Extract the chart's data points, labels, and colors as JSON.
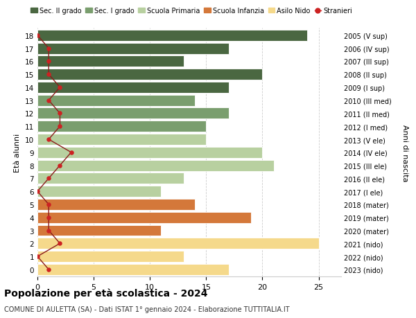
{
  "ages": [
    18,
    17,
    16,
    15,
    14,
    13,
    12,
    11,
    10,
    9,
    8,
    7,
    6,
    5,
    4,
    3,
    2,
    1,
    0
  ],
  "years": [
    "2005 (V sup)",
    "2006 (IV sup)",
    "2007 (III sup)",
    "2008 (II sup)",
    "2009 (I sup)",
    "2010 (III med)",
    "2011 (II med)",
    "2012 (I med)",
    "2013 (V ele)",
    "2014 (IV ele)",
    "2015 (III ele)",
    "2016 (II ele)",
    "2017 (I ele)",
    "2018 (mater)",
    "2019 (mater)",
    "2020 (mater)",
    "2021 (nido)",
    "2022 (nido)",
    "2023 (nido)"
  ],
  "values": [
    24,
    17,
    13,
    20,
    17,
    14,
    17,
    15,
    15,
    20,
    21,
    13,
    11,
    14,
    19,
    11,
    25,
    13,
    17
  ],
  "stranieri": [
    0,
    1,
    1,
    1,
    2,
    1,
    2,
    2,
    1,
    3,
    2,
    1,
    0,
    1,
    1,
    1,
    2,
    0,
    1
  ],
  "bar_colors": {
    "sec2": "#4a6741",
    "sec1": "#7a9e6e",
    "primaria": "#b8d0a0",
    "infanzia": "#d4783a",
    "nido": "#f5d98b"
  },
  "categories": {
    "sec2": [
      18,
      17,
      16,
      15,
      14
    ],
    "sec1": [
      13,
      12,
      11
    ],
    "primaria": [
      10,
      9,
      8,
      7,
      6
    ],
    "infanzia": [
      5,
      4,
      3
    ],
    "nido": [
      2,
      1,
      0
    ]
  },
  "legend_labels": [
    "Sec. II grado",
    "Sec. I grado",
    "Scuola Primaria",
    "Scuola Infanzia",
    "Asilo Nido",
    "Stranieri"
  ],
  "title_main": "Popolazione per età scolastica - 2024",
  "title_sub": "COMUNE DI AULETTA (SA) - Dati ISTAT 1° gennaio 2024 - Elaborazione TUTTITALIA.IT",
  "ylabel_left": "Età alunni",
  "ylabel_right": "Anni di nascita",
  "xlim": [
    0,
    27
  ],
  "xticks": [
    0,
    5,
    10,
    15,
    20,
    25
  ],
  "background_color": "#ffffff"
}
